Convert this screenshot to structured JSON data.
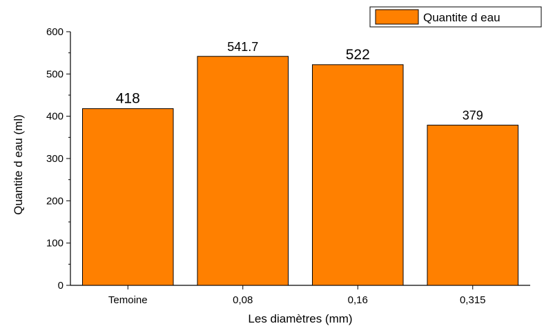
{
  "chart_data": {
    "type": "bar",
    "categories": [
      "Temoine",
      "0,08",
      "0,16",
      "0,315"
    ],
    "values": [
      418,
      541.7,
      522,
      379
    ],
    "data_labels": [
      "418",
      "541.7",
      "522",
      "379"
    ],
    "series": [
      {
        "name": "Quantite d eau",
        "values": [
          418,
          541.7,
          522,
          379
        ]
      }
    ],
    "xlabel": "Les diamètres (mm)",
    "ylabel": "Quantite d eau (ml)",
    "ylim": [
      0,
      600
    ],
    "yticks": [
      "0",
      "100",
      "200",
      "300",
      "400",
      "500",
      "600"
    ],
    "grid": false,
    "legend": {
      "position": "top-right",
      "label": "Quantite d eau"
    },
    "colors": {
      "bar_fill": "#ff8000",
      "bar_stroke": "#000000"
    }
  }
}
